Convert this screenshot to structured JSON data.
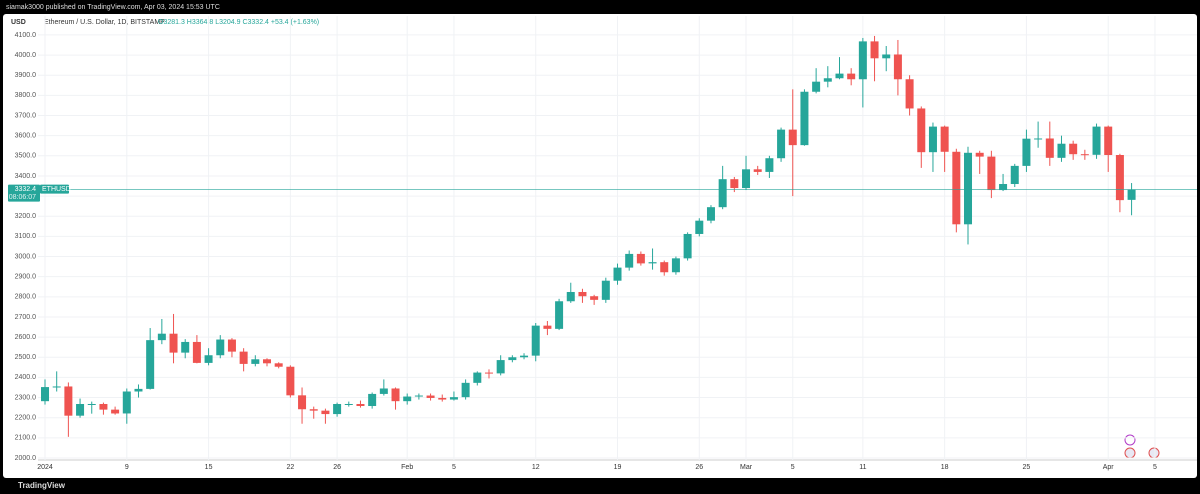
{
  "header": {
    "publisher": "siamak3000 published on TradingView.com, Apr 03, 2024 15:53 UTC",
    "footer": "TradingView"
  },
  "chart_data": {
    "type": "candlestick",
    "title": "Ethereum / U.S. Dollar, 1D, BITSTAMP",
    "subtitle": "O3281.3 H3364.8 L3204.9 C3332.4 +53.4 (+1.63%)",
    "y_label": "USD",
    "symbol": "ETHUSD",
    "countdown": "08:06:07",
    "last_price": {
      "value": 3332.4,
      "label": "3332.4"
    },
    "up_color": "#26a69a",
    "down_color": "#ef5350",
    "grid": true,
    "open": [
      2282,
      2352,
      2355,
      2210,
      2268,
      2268,
      2240,
      2221,
      2330,
      2343,
      2585,
      2617,
      2523,
      2576,
      2472,
      2510,
      2588,
      2528,
      2467,
      2490,
      2470,
      2453,
      2311,
      2242,
      2235,
      2218,
      2268,
      2268,
      2258,
      2318,
      2345,
      2282,
      2305,
      2310,
      2298,
      2290,
      2302,
      2373,
      2424,
      2420,
      2486,
      2500,
      2508,
      2657,
      2641,
      2778,
      2824,
      2803,
      2785,
      2880,
      2945,
      3013,
      2966,
      2972,
      2922,
      2991,
      3112,
      3178,
      3245,
      3384,
      3340,
      3433,
      3420,
      3488,
      3630,
      3553,
      3818,
      3868,
      3885,
      3908,
      3880,
      4068,
      3984,
      4003,
      3880,
      3735,
      3518,
      3645,
      3520,
      3160,
      3515,
      3496,
      3330,
      3360,
      3450,
      3585,
      3586,
      3490,
      3560,
      3508,
      3505,
      3645,
      3504,
      3281.3
    ],
    "high": [
      2390,
      2430,
      2375,
      2295,
      2280,
      2275,
      2255,
      2345,
      2365,
      2645,
      2690,
      2715,
      2590,
      2610,
      2545,
      2610,
      2595,
      2545,
      2510,
      2495,
      2475,
      2460,
      2350,
      2255,
      2245,
      2275,
      2280,
      2285,
      2325,
      2390,
      2350,
      2320,
      2320,
      2320,
      2315,
      2330,
      2390,
      2430,
      2440,
      2510,
      2510,
      2520,
      2670,
      2680,
      2790,
      2870,
      2840,
      2810,
      2895,
      2965,
      3030,
      3025,
      3040,
      2980,
      3000,
      3120,
      3190,
      3255,
      3450,
      3395,
      3500,
      3450,
      3500,
      3640,
      3830,
      3830,
      3935,
      3945,
      3990,
      3935,
      4085,
      4095,
      4045,
      4075,
      3900,
      3745,
      3665,
      3650,
      3535,
      3545,
      3525,
      3525,
      3410,
      3460,
      3630,
      3670,
      3670,
      3600,
      3575,
      3530,
      3660,
      3650,
      3510,
      3364.8
    ],
    "low": [
      2265,
      2330,
      2105,
      2200,
      2220,
      2215,
      2215,
      2170,
      2300,
      2340,
      2565,
      2470,
      2495,
      2470,
      2460,
      2495,
      2500,
      2430,
      2455,
      2455,
      2445,
      2300,
      2170,
      2195,
      2170,
      2205,
      2255,
      2250,
      2245,
      2310,
      2240,
      2265,
      2290,
      2285,
      2280,
      2285,
      2290,
      2360,
      2395,
      2410,
      2475,
      2490,
      2480,
      2610,
      2635,
      2770,
      2770,
      2760,
      2770,
      2860,
      2930,
      2955,
      2935,
      2905,
      2910,
      2980,
      3100,
      3165,
      3235,
      3320,
      3330,
      3405,
      3390,
      3470,
      3300,
      3550,
      3810,
      3840,
      3880,
      3850,
      3740,
      3870,
      3920,
      3800,
      3700,
      3440,
      3420,
      3420,
      3120,
      3060,
      3410,
      3290,
      3325,
      3345,
      3420,
      3540,
      3450,
      3470,
      3480,
      3480,
      3485,
      3420,
      3220,
      3204.9
    ],
    "close": [
      2352,
      2355,
      2210,
      2268,
      2268,
      2240,
      2221,
      2330,
      2343,
      2585,
      2617,
      2523,
      2576,
      2472,
      2510,
      2588,
      2528,
      2467,
      2490,
      2470,
      2453,
      2311,
      2242,
      2235,
      2218,
      2268,
      2268,
      2258,
      2318,
      2345,
      2282,
      2305,
      2310,
      2298,
      2290,
      2302,
      2373,
      2424,
      2420,
      2486,
      2500,
      2508,
      2657,
      2641,
      2778,
      2824,
      2803,
      2785,
      2880,
      2945,
      3013,
      2966,
      2972,
      2922,
      2991,
      3112,
      3178,
      3245,
      3384,
      3340,
      3433,
      3420,
      3488,
      3630,
      3553,
      3818,
      3868,
      3885,
      3908,
      3880,
      4068,
      3984,
      4003,
      3880,
      3735,
      3518,
      3645,
      3520,
      3160,
      3515,
      3496,
      3330,
      3360,
      3450,
      3585,
      3586,
      3490,
      3560,
      3508,
      3505,
      3645,
      3504,
      3280,
      3332.4
    ],
    "xlim": [
      -0.6,
      98
    ],
    "xticks": [
      {
        "value": 0,
        "label": "2024"
      },
      {
        "value": 7,
        "label": "9"
      },
      {
        "value": 14,
        "label": "15"
      },
      {
        "value": 21,
        "label": "22"
      },
      {
        "value": 25,
        "label": "26"
      },
      {
        "value": 31,
        "label": "Feb"
      },
      {
        "value": 35,
        "label": "5"
      },
      {
        "value": 42,
        "label": "12"
      },
      {
        "value": 49,
        "label": "19"
      },
      {
        "value": 56,
        "label": "26"
      },
      {
        "value": 60,
        "label": "Mar"
      },
      {
        "value": 64,
        "label": "5"
      },
      {
        "value": 70,
        "label": "11"
      },
      {
        "value": 77,
        "label": "18"
      },
      {
        "value": 84,
        "label": "25"
      },
      {
        "value": 91,
        "label": "Apr"
      },
      {
        "value": 95,
        "label": "5"
      }
    ],
    "ylim": [
      1990,
      4194
    ],
    "yticks": [
      {
        "value": 2000,
        "label": "2000.0"
      },
      {
        "value": 2100,
        "label": "2100.0"
      },
      {
        "value": 2200,
        "label": "2200.0"
      },
      {
        "value": 2300,
        "label": "2300.0"
      },
      {
        "value": 2400,
        "label": "2400.0"
      },
      {
        "value": 2500,
        "label": "2500.0"
      },
      {
        "value": 2600,
        "label": "2600.0"
      },
      {
        "value": 2700,
        "label": "2700.0"
      },
      {
        "value": 2800,
        "label": "2800.0"
      },
      {
        "value": 2900,
        "label": "2900.0"
      },
      {
        "value": 3000,
        "label": "3000.0"
      },
      {
        "value": 3100,
        "label": "3100.0"
      },
      {
        "value": 3200,
        "label": "3200.0"
      },
      {
        "value": 3300,
        "label": "3300.0"
      },
      {
        "value": 3400,
        "label": "3400.0"
      },
      {
        "value": 3500,
        "label": "3500.0"
      },
      {
        "value": 3600,
        "label": "3600.0"
      },
      {
        "value": 3700,
        "label": "3700.0"
      },
      {
        "value": 3800,
        "label": "3800.0"
      },
      {
        "value": 3900,
        "label": "3900.0"
      },
      {
        "value": 4000,
        "label": "4000.0"
      },
      {
        "value": 4100,
        "label": "4100.0"
      }
    ]
  }
}
